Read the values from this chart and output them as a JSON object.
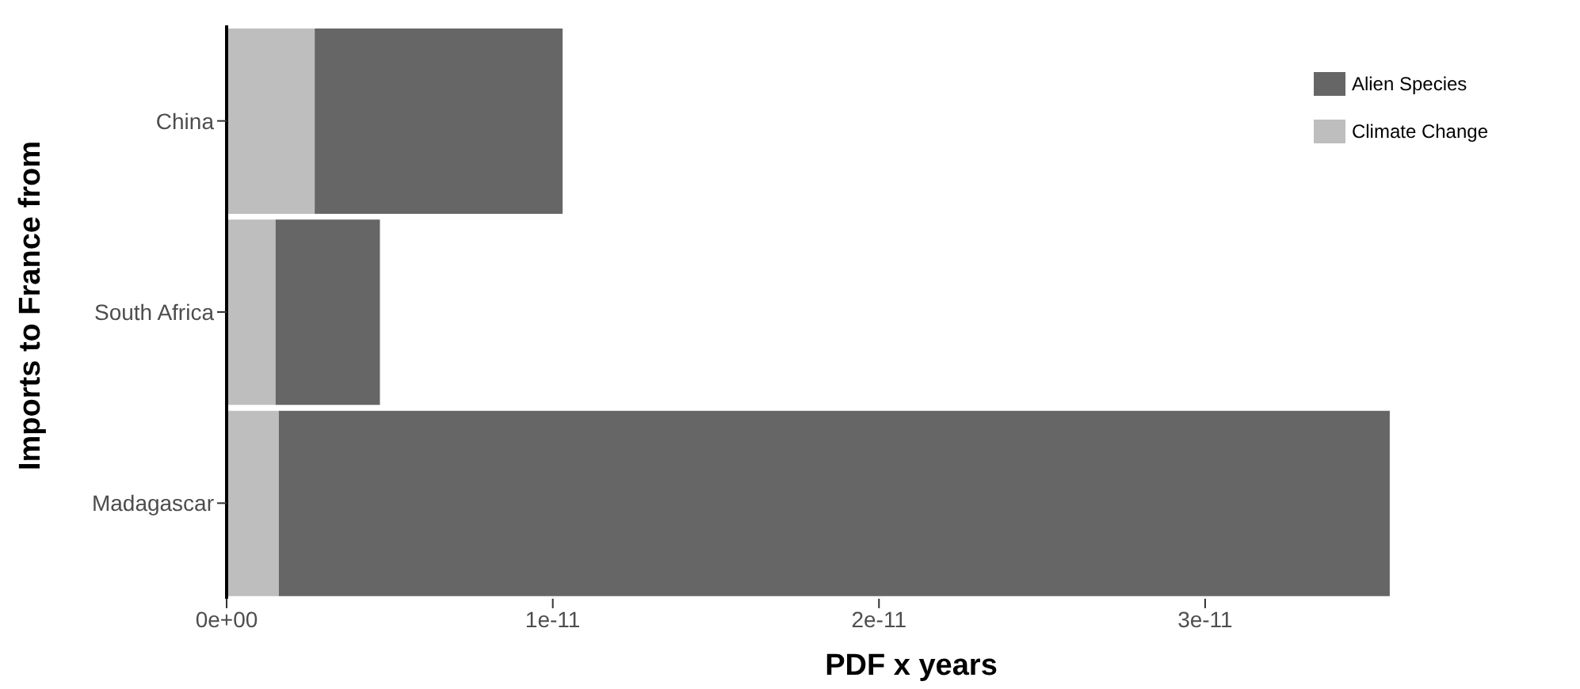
{
  "chart_data": {
    "type": "bar",
    "orientation": "horizontal",
    "stacked": true,
    "xlabel": "PDF x years",
    "ylabel": "Imports to France from",
    "categories": [
      "China",
      "South Africa",
      "Madagascar"
    ],
    "series": [
      {
        "name": "Climate Change",
        "color": "#bebebe",
        "values": [
          2.7e-12,
          1.5e-12,
          1.6e-12
        ]
      },
      {
        "name": "Alien Species",
        "color": "#666666",
        "values": [
          7.6e-12,
          3.2e-12,
          3.41e-11
        ]
      }
    ],
    "xlim": [
      0,
      3.566e-11
    ],
    "xticks": [
      {
        "value": 0,
        "label": "0e+00"
      },
      {
        "value": 1e-11,
        "label": "1e-11"
      },
      {
        "value": 2e-11,
        "label": "2e-11"
      },
      {
        "value": 3e-11,
        "label": "3e-11"
      }
    ],
    "grid": false,
    "legend": "top right"
  }
}
